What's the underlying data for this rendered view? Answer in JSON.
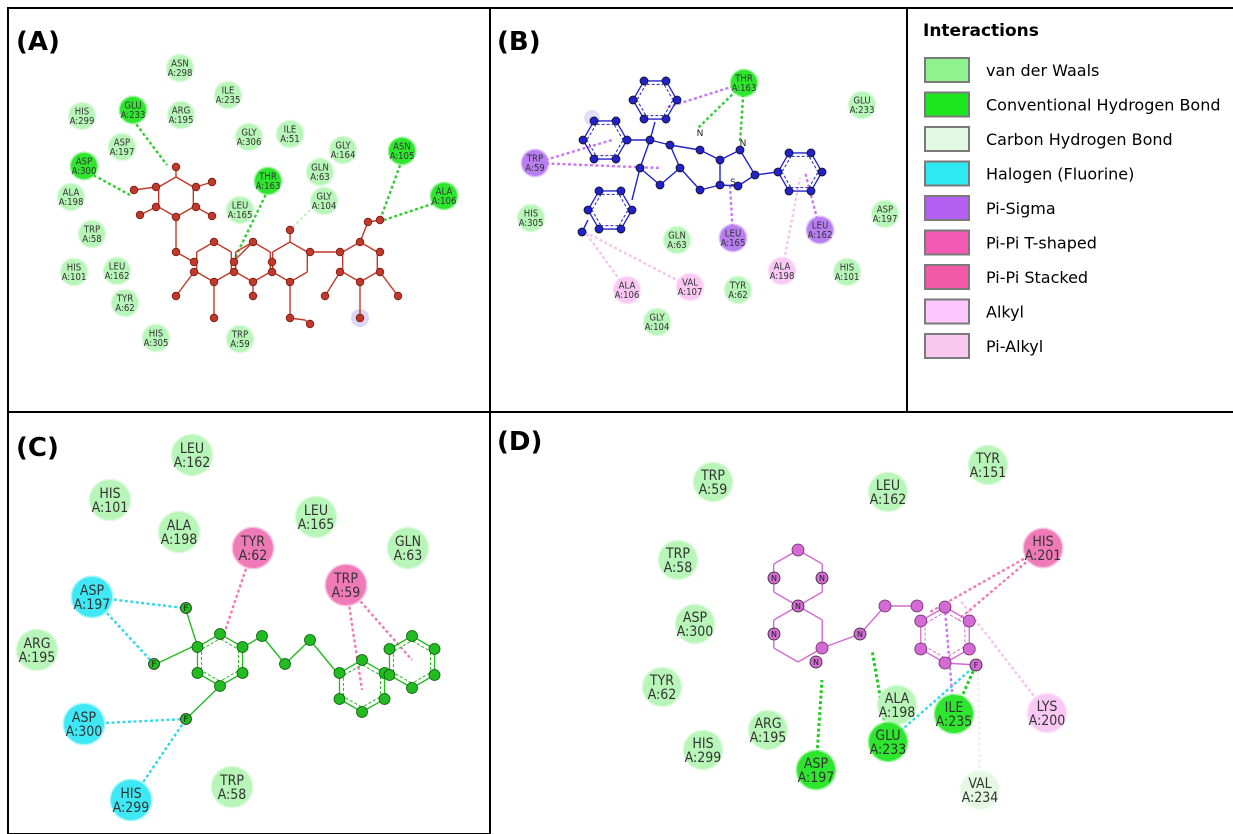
{
  "panel_labels": {
    "A": "(A)",
    "B": "(B)",
    "C": "(C)",
    "D": "(D)"
  },
  "legend": {
    "title": "Interactions",
    "items": [
      {
        "key": "vdw",
        "label": "van der Waals",
        "color": "#8ef28e"
      },
      {
        "key": "hbond",
        "label": "Conventional Hydrogen Bond",
        "color": "#1ee61e"
      },
      {
        "key": "chbond",
        "label": "Carbon Hydrogen Bond",
        "color": "#e2f9e2"
      },
      {
        "key": "halogen",
        "label": "Halogen (Fluorine)",
        "color": "#2ee9f2"
      },
      {
        "key": "pisigma",
        "label": "Pi-Sigma",
        "color": "#b25ff2"
      },
      {
        "key": "pipit",
        "label": "Pi-Pi T-shaped",
        "color": "#f25ab4"
      },
      {
        "key": "pipistack",
        "label": "Pi-Pi Stacked",
        "color": "#f25aa8"
      },
      {
        "key": "alkyl",
        "label": "Alkyl",
        "color": "#fdc6fd"
      },
      {
        "key": "pialkyl",
        "label": "Pi-Alkyl",
        "color": "#f8c8ef"
      }
    ]
  },
  "colors": {
    "vdw": "#b8f5b8",
    "hbond": "#2ee62e",
    "chbond": "#e4f8e4",
    "halogen": "#3ee9f5",
    "pisigma": "#b87ef2",
    "pipi": "#f07ab8",
    "alkyl": "#f9c8f4",
    "pialkyl": "#f6c6ee",
    "ligA": "#c0392b",
    "ligB": "#2222cc",
    "ligC": "#22bb22",
    "ligD": "#d46ad4"
  },
  "panelA": {
    "residues": [
      {
        "name": "ASN",
        "num": "A:298",
        "type": "vdw"
      },
      {
        "name": "HIS",
        "num": "A:299",
        "type": "vdw"
      },
      {
        "name": "GLU",
        "num": "A:233",
        "type": "hbond"
      },
      {
        "name": "ARG",
        "num": "A:195",
        "type": "vdw"
      },
      {
        "name": "ILE",
        "num": "A:235",
        "type": "vdw"
      },
      {
        "name": "ASP",
        "num": "A:197",
        "type": "vdw"
      },
      {
        "name": "GLY",
        "num": "A:306",
        "type": "vdw"
      },
      {
        "name": "ILE",
        "num": "A:51",
        "type": "vdw"
      },
      {
        "name": "GLY",
        "num": "A:164",
        "type": "vdw"
      },
      {
        "name": "ASN",
        "num": "A:105",
        "type": "hbond"
      },
      {
        "name": "ASP",
        "num": "A:300",
        "type": "hbond"
      },
      {
        "name": "THR",
        "num": "A:163",
        "type": "hbond"
      },
      {
        "name": "GLN",
        "num": "A:63",
        "type": "vdw"
      },
      {
        "name": "ALA",
        "num": "A:106",
        "type": "hbond"
      },
      {
        "name": "ALA",
        "num": "A:198",
        "type": "vdw"
      },
      {
        "name": "LEU",
        "num": "A:165",
        "type": "vdw"
      },
      {
        "name": "GLY",
        "num": "A:104",
        "type": "vdw"
      },
      {
        "name": "TRP",
        "num": "A:58",
        "type": "vdw"
      },
      {
        "name": "HIS",
        "num": "A:101",
        "type": "vdw"
      },
      {
        "name": "LEU",
        "num": "A:162",
        "type": "vdw"
      },
      {
        "name": "TYR",
        "num": "A:62",
        "type": "vdw"
      },
      {
        "name": "HIS",
        "num": "A:305",
        "type": "vdw"
      },
      {
        "name": "TRP",
        "num": "A:59",
        "type": "vdw"
      }
    ]
  },
  "panelB": {
    "residues": [
      {
        "name": "THR",
        "num": "A:163",
        "type": "hbond"
      },
      {
        "name": "GLU",
        "num": "A:233",
        "type": "vdw"
      },
      {
        "name": "TRP",
        "num": "A:59",
        "type": "pisigma"
      },
      {
        "name": "HIS",
        "num": "A:305",
        "type": "vdw"
      },
      {
        "name": "ASP",
        "num": "A:197",
        "type": "vdw"
      },
      {
        "name": "GLN",
        "num": "A:63",
        "type": "vdw"
      },
      {
        "name": "LEU",
        "num": "A:165",
        "type": "pisigma"
      },
      {
        "name": "LEU",
        "num": "A:162",
        "type": "pisigma"
      },
      {
        "name": "HIS",
        "num": "A:101",
        "type": "vdw"
      },
      {
        "name": "ALA",
        "num": "A:106",
        "type": "alkyl"
      },
      {
        "name": "VAL",
        "num": "A:107",
        "type": "alkyl"
      },
      {
        "name": "TYR",
        "num": "A:62",
        "type": "vdw"
      },
      {
        "name": "ALA",
        "num": "A:198",
        "type": "alkyl"
      },
      {
        "name": "GLY",
        "num": "A:104",
        "type": "vdw"
      }
    ],
    "atoms": [
      "N",
      "N",
      "S"
    ]
  },
  "panelC": {
    "residues": [
      {
        "name": "LEU",
        "num": "A:162",
        "type": "vdw"
      },
      {
        "name": "HIS",
        "num": "A:101",
        "type": "vdw"
      },
      {
        "name": "ALA",
        "num": "A:198",
        "type": "vdw"
      },
      {
        "name": "TYR",
        "num": "A:62",
        "type": "pipi"
      },
      {
        "name": "LEU",
        "num": "A:165",
        "type": "vdw"
      },
      {
        "name": "GLN",
        "num": "A:63",
        "type": "vdw"
      },
      {
        "name": "ASP",
        "num": "A:197",
        "type": "halogen"
      },
      {
        "name": "TRP",
        "num": "A:59",
        "type": "pipi"
      },
      {
        "name": "ARG",
        "num": "A:195",
        "type": "vdw"
      },
      {
        "name": "ASP",
        "num": "A:300",
        "type": "halogen"
      },
      {
        "name": "TRP",
        "num": "A:58",
        "type": "vdw"
      },
      {
        "name": "HIS",
        "num": "A:299",
        "type": "halogen"
      }
    ],
    "atoms": [
      "F",
      "F",
      "F"
    ]
  },
  "panelD": {
    "residues": [
      {
        "name": "TRP",
        "num": "A:59",
        "type": "vdw"
      },
      {
        "name": "LEU",
        "num": "A:162",
        "type": "vdw"
      },
      {
        "name": "TYR",
        "num": "A:151",
        "type": "vdw"
      },
      {
        "name": "TRP",
        "num": "A:58",
        "type": "vdw"
      },
      {
        "name": "HIS",
        "num": "A:201",
        "type": "pipi"
      },
      {
        "name": "ASP",
        "num": "A:300",
        "type": "vdw"
      },
      {
        "name": "TYR",
        "num": "A:62",
        "type": "vdw"
      },
      {
        "name": "ARG",
        "num": "A:195",
        "type": "vdw"
      },
      {
        "name": "ALA",
        "num": "A:198",
        "type": "vdw"
      },
      {
        "name": "ILE",
        "num": "A:235",
        "type": "hbond"
      },
      {
        "name": "LYS",
        "num": "A:200",
        "type": "alkyl"
      },
      {
        "name": "HIS",
        "num": "A:299",
        "type": "vdw"
      },
      {
        "name": "GLU",
        "num": "A:233",
        "type": "hbond"
      },
      {
        "name": "ASP",
        "num": "A:197",
        "type": "hbond"
      },
      {
        "name": "VAL",
        "num": "A:234",
        "type": "chbond"
      }
    ],
    "atoms": [
      "N",
      "N",
      "N",
      "N",
      "N",
      "N",
      "F"
    ]
  }
}
